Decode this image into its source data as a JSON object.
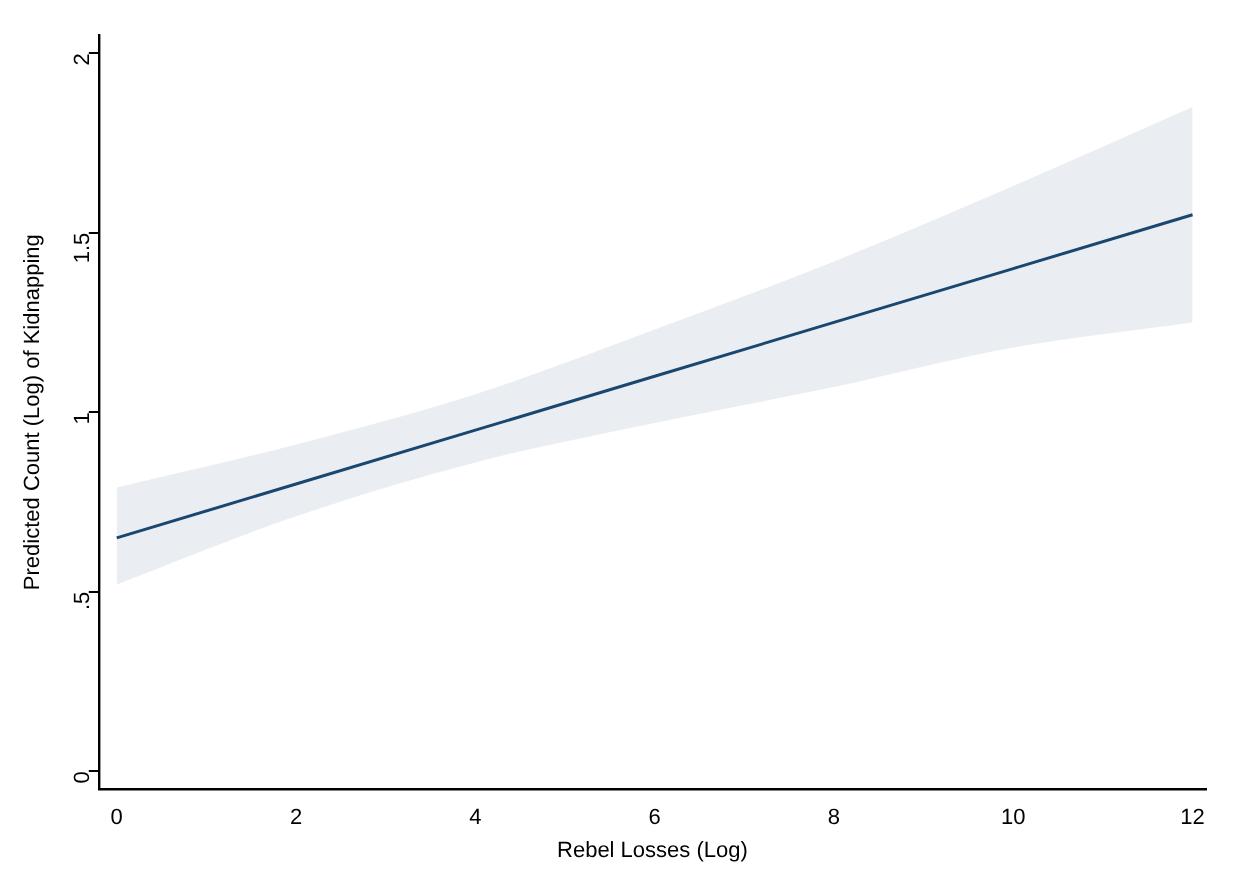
{
  "chart_data": {
    "type": "line",
    "xlabel": "Rebel Losses (Log)",
    "ylabel": "Predicted Count (Log) of Kidnapping",
    "x": [
      0,
      2,
      4,
      6,
      8,
      10,
      12
    ],
    "series": [
      {
        "type": "line",
        "color": "#1a476f",
        "values": [
          0.65,
          0.8,
          0.95,
          1.1,
          1.25,
          1.4,
          1.55
        ],
        "lower": [
          0.52,
          0.71,
          0.86,
          0.97,
          1.07,
          1.18,
          1.25
        ],
        "upper": [
          0.79,
          0.91,
          1.05,
          1.23,
          1.42,
          1.63,
          1.85
        ]
      }
    ],
    "xlim": [
      -0.2,
      12.15
    ],
    "xticks": [
      0,
      2,
      4,
      6,
      8,
      10,
      12
    ],
    "ylim": [
      -0.05,
      2.05
    ],
    "yticks": [
      0,
      {
        "value": 0.5,
        "label": ".5"
      },
      1,
      1.5,
      2
    ],
    "grid": false,
    "legend": false,
    "marker": "none",
    "line_style": "solid"
  }
}
